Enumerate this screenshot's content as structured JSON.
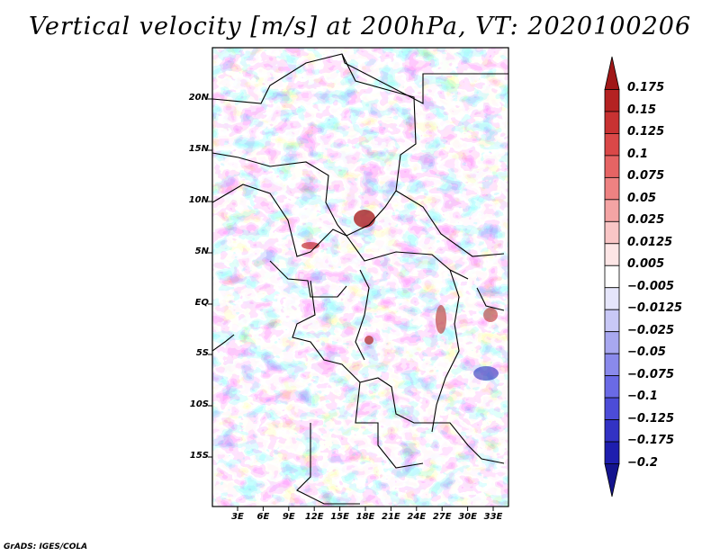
{
  "title": "Vertical velocity [m/s] at 200hPa, VT: 2020100206",
  "credit": "GrADS: IGES/COLA",
  "latitude_labels": [
    "20N",
    "15N",
    "10N",
    "5N",
    "EQ",
    "5S",
    "10S",
    "15S"
  ],
  "longitude_labels": [
    "3E",
    "6E",
    "9E",
    "12E",
    "15E",
    "18E",
    "21E",
    "24E",
    "27E",
    "30E",
    "33E"
  ],
  "colorbar": {
    "labels": [
      "0.175",
      "0.15",
      "0.125",
      "0.1",
      "0.075",
      "0.05",
      "0.025",
      "0.0125",
      "0.005",
      "−0.005",
      "−0.0125",
      "−0.025",
      "−0.05",
      "−0.075",
      "−0.1",
      "−0.125",
      "−0.175",
      "−0.2"
    ],
    "colors": [
      "#a01818",
      "#b42222",
      "#c83232",
      "#da4848",
      "#e66464",
      "#ee8282",
      "#f4a4a4",
      "#f9c6c6",
      "#fde6e6",
      "#ffffff",
      "#e6e6fb",
      "#c8c8f6",
      "#a8a8f0",
      "#8a8aec",
      "#6a6ae6",
      "#4c4cd8",
      "#3232c4",
      "#1e1eae",
      "#14148e"
    ]
  },
  "colors": {
    "positive": "#e8575a",
    "negative": "#6464e6",
    "neutral": "#ffffff",
    "borders": "#000000"
  }
}
